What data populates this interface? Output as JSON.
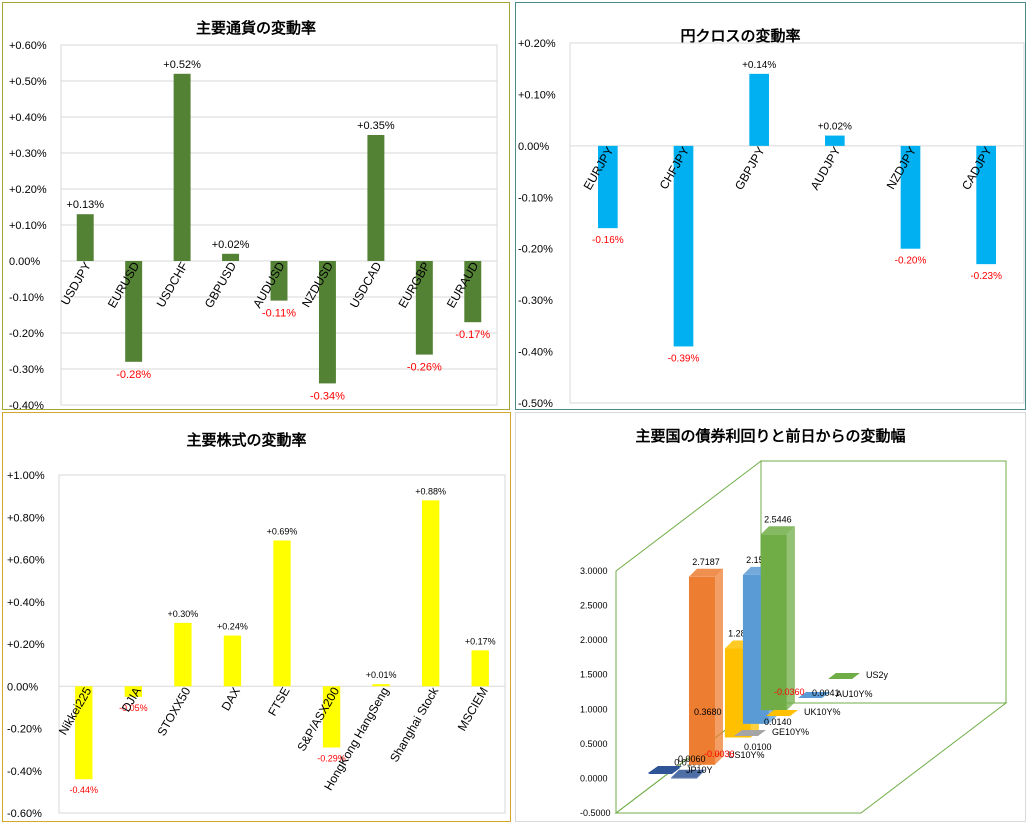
{
  "chart_data": [
    {
      "id": "fx",
      "type": "bar",
      "title": "主要通貨の変動率",
      "categories": [
        "USDJPY",
        "EURUSD",
        "USDCHF",
        "GBPUSD",
        "AUDUSD",
        "NZDUSD",
        "USDCAD",
        "EURGBP",
        "EURAUD"
      ],
      "values": [
        0.13,
        -0.28,
        0.52,
        0.02,
        -0.11,
        -0.34,
        0.35,
        -0.26,
        -0.17
      ],
      "value_labels": [
        "+0.13%",
        "-0.28%",
        "+0.52%",
        "+0.02%",
        "-0.11%",
        "-0.34%",
        "+0.35%",
        "-0.26%",
        "-0.17%"
      ],
      "y_ticks": [
        "+0.60%",
        "+0.50%",
        "+0.40%",
        "+0.30%",
        "+0.20%",
        "+0.10%",
        "0.00%",
        "-0.10%",
        "-0.20%",
        "-0.30%",
        "-0.40%"
      ],
      "ylim": [
        -0.4,
        0.6
      ],
      "grid": true,
      "colors": {
        "bar": "#548235",
        "positive_label": "#000000",
        "negative_label": "#ff0000",
        "border": "#a5a53a"
      }
    },
    {
      "id": "jpy",
      "type": "bar",
      "title": "円クロスの変動率",
      "categories": [
        "EURJPY",
        "CHFJPY",
        "GBPJPY",
        "AUDJPY",
        "NZDJPY",
        "CADJPY"
      ],
      "values": [
        -0.16,
        -0.39,
        0.14,
        0.02,
        -0.2,
        -0.23
      ],
      "value_labels": [
        "-0.16%",
        "-0.39%",
        "+0.14%",
        "+0.02%",
        "-0.20%",
        "-0.23%"
      ],
      "y_ticks": [
        "+0.20%",
        "+0.10%",
        "0.00%",
        "-0.10%",
        "-0.20%",
        "-0.30%",
        "-0.40%",
        "-0.50%"
      ],
      "ylim": [
        -0.5,
        0.2
      ],
      "grid": false,
      "colors": {
        "bar": "#00b0f0",
        "positive_label": "#000000",
        "negative_label": "#ff0000",
        "border": "#4a8a8a"
      }
    },
    {
      "id": "stocks",
      "type": "bar",
      "title": "主要株式の変動率",
      "categories": [
        "Nikkei225",
        "DJIA",
        "STOXX50",
        "DAX",
        "FTSE",
        "S&P/ASX200",
        "HongKong HangSeng",
        "Shanghai Stock",
        "MSCIEM"
      ],
      "values": [
        -0.44,
        -0.05,
        0.3,
        0.24,
        0.69,
        -0.29,
        0.01,
        0.88,
        0.17
      ],
      "value_labels": [
        "-0.44%",
        "-0.05%",
        "+0.30%",
        "+0.24%",
        "+0.69%",
        "-0.29%",
        "+0.01%",
        "+0.88%",
        "+0.17%"
      ],
      "y_ticks": [
        "+1.00%",
        "+0.80%",
        "+0.60%",
        "+0.40%",
        "+0.20%",
        "0.00%",
        "-0.20%",
        "-0.40%",
        "-0.60%"
      ],
      "ylim": [
        -0.6,
        1.0
      ],
      "grid": false,
      "colors": {
        "bar": "#ffff00",
        "positive_label": "#000000",
        "negative_label": "#ff0000",
        "border": "#d4a62a"
      }
    },
    {
      "id": "bonds",
      "type": "bar",
      "subtype": "3d-bar",
      "title": "主要国の債券利回りと前日からの変動幅",
      "categories": [
        "JP10Y",
        "US10Y%",
        "GE10Y%",
        "UK10Y%",
        "AU10Y%",
        "US2y"
      ],
      "yields": [
        0.01,
        2.7187,
        null,
        1.287,
        2.155,
        2.5446
      ],
      "yield_labels": [
        "0.0100",
        "2.7187",
        "",
        "1.2870",
        "2.1550",
        "2.5446"
      ],
      "changes": [
        0.006,
        -0.0036,
        0.01,
        0.014,
        -0.036,
        0.0041
      ],
      "change_labels": [
        "0.0060",
        "-0.0036",
        "0.0100",
        "0.0140",
        "-0.0360",
        "0.0041"
      ],
      "extra_labels": [
        "0.3680"
      ],
      "y_ticks": [
        "3.0000",
        "2.5000",
        "2.0000",
        "1.5000",
        "1.0000",
        "0.5000",
        "0.0000",
        "-0.5000"
      ],
      "ylim": [
        -0.5,
        3.0
      ],
      "colors": {
        "jp": "#2f5597",
        "us10": "#ed7d31",
        "ge": "#a5a5a5",
        "uk": "#ffc000",
        "au": "#5b9bd5",
        "us2": "#70ad47",
        "negative_label": "#ff0000",
        "wall": "#70ad47"
      }
    }
  ]
}
